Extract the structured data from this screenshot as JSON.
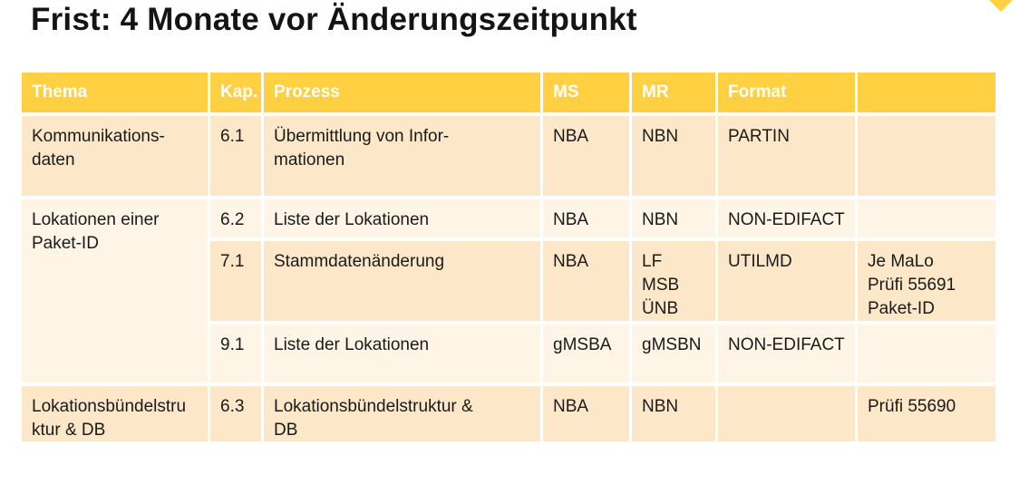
{
  "title": "Frist: 4 Monate vor Änderungszeitpunkt",
  "colors": {
    "accent_yellow": "#FFD142",
    "row_shade_dark": "#FCE8C9",
    "row_shade_light": "#FEF5E6",
    "header_text": "#FFFFFF",
    "body_text": "#1A1A1A"
  },
  "table": {
    "headers": {
      "thema": "Thema",
      "kap": "Kap.",
      "prozess": "Prozess",
      "ms": "MS",
      "mr": "MR",
      "format": "Format",
      "extra": ""
    },
    "rows": [
      {
        "thema": "Kommunikations-\ndaten",
        "kap": "6.1",
        "prozess": "Übermittlung von Infor-\nmationen",
        "ms": "NBA",
        "mr": "NBN",
        "format": "PARTIN",
        "extra": ""
      },
      {
        "thema": "Lokationen einer\nPaket-ID",
        "kap": "6.2",
        "prozess": "Liste der Lokationen",
        "ms": "NBA",
        "mr": "NBN",
        "format": "NON-EDIFACT",
        "extra": ""
      },
      {
        "kap": "7.1",
        "prozess": "Stammdatenänderung",
        "ms": "NBA",
        "mr": "LF\nMSB\nÜNB",
        "format": "UTILMD",
        "extra": "Je MaLo\nPrüfi 55691\nPaket-ID"
      },
      {
        "kap": "9.1",
        "prozess": "Liste der Lokationen",
        "ms": "gMSBA",
        "mr": "gMSBN",
        "format": "NON-EDIFACT",
        "extra": ""
      },
      {
        "thema": "Lokationsbündelstru\nktur & DB",
        "kap": "6.3",
        "prozess": "Lokationsbündelstruktur &\nDB",
        "ms": "NBA",
        "mr": "NBN",
        "format": "",
        "extra": "Prüfi 55690"
      }
    ]
  }
}
